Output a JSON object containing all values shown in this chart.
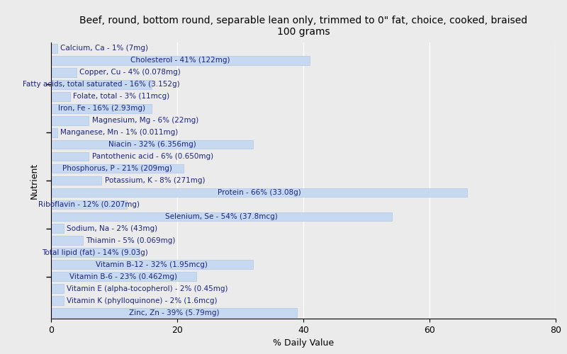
{
  "title": "Beef, round, bottom round, separable lean only, trimmed to 0\" fat, choice, cooked, braised\n100 grams",
  "xlabel": "% Daily Value",
  "ylabel": "Nutrient",
  "xlim": [
    0,
    80
  ],
  "bar_color": "#c6d9f1",
  "bar_edge_color": "#b0c8e8",
  "background_color": "#ebebeb",
  "text_color": "#1a237e",
  "nutrients": [
    {
      "name": "Calcium, Ca - 1% (7mg)",
      "value": 1
    },
    {
      "name": "Cholesterol - 41% (122mg)",
      "value": 41
    },
    {
      "name": "Copper, Cu - 4% (0.078mg)",
      "value": 4
    },
    {
      "name": "Fatty acids, total saturated - 16% (3.152g)",
      "value": 16
    },
    {
      "name": "Folate, total - 3% (11mcg)",
      "value": 3
    },
    {
      "name": "Iron, Fe - 16% (2.93mg)",
      "value": 16
    },
    {
      "name": "Magnesium, Mg - 6% (22mg)",
      "value": 6
    },
    {
      "name": "Manganese, Mn - 1% (0.011mg)",
      "value": 1
    },
    {
      "name": "Niacin - 32% (6.356mg)",
      "value": 32
    },
    {
      "name": "Pantothenic acid - 6% (0.650mg)",
      "value": 6
    },
    {
      "name": "Phosphorus, P - 21% (209mg)",
      "value": 21
    },
    {
      "name": "Potassium, K - 8% (271mg)",
      "value": 8
    },
    {
      "name": "Protein - 66% (33.08g)",
      "value": 66
    },
    {
      "name": "Riboflavin - 12% (0.207mg)",
      "value": 12
    },
    {
      "name": "Selenium, Se - 54% (37.8mcg)",
      "value": 54
    },
    {
      "name": "Sodium, Na - 2% (43mg)",
      "value": 2
    },
    {
      "name": "Thiamin - 5% (0.069mg)",
      "value": 5
    },
    {
      "name": "Total lipid (fat) - 14% (9.03g)",
      "value": 14
    },
    {
      "name": "Vitamin B-12 - 32% (1.95mcg)",
      "value": 32
    },
    {
      "name": "Vitamin B-6 - 23% (0.462mg)",
      "value": 23
    },
    {
      "name": "Vitamin E (alpha-tocopherol) - 2% (0.45mg)",
      "value": 2
    },
    {
      "name": "Vitamin K (phylloquinone) - 2% (1.6mcg)",
      "value": 2
    },
    {
      "name": "Zinc, Zn - 39% (5.79mg)",
      "value": 39
    }
  ],
  "ytick_positions": [
    3,
    7,
    11,
    15,
    19
  ],
  "title_fontsize": 10,
  "axis_label_fontsize": 9,
  "tick_fontsize": 9,
  "bar_label_fontsize": 7.5
}
